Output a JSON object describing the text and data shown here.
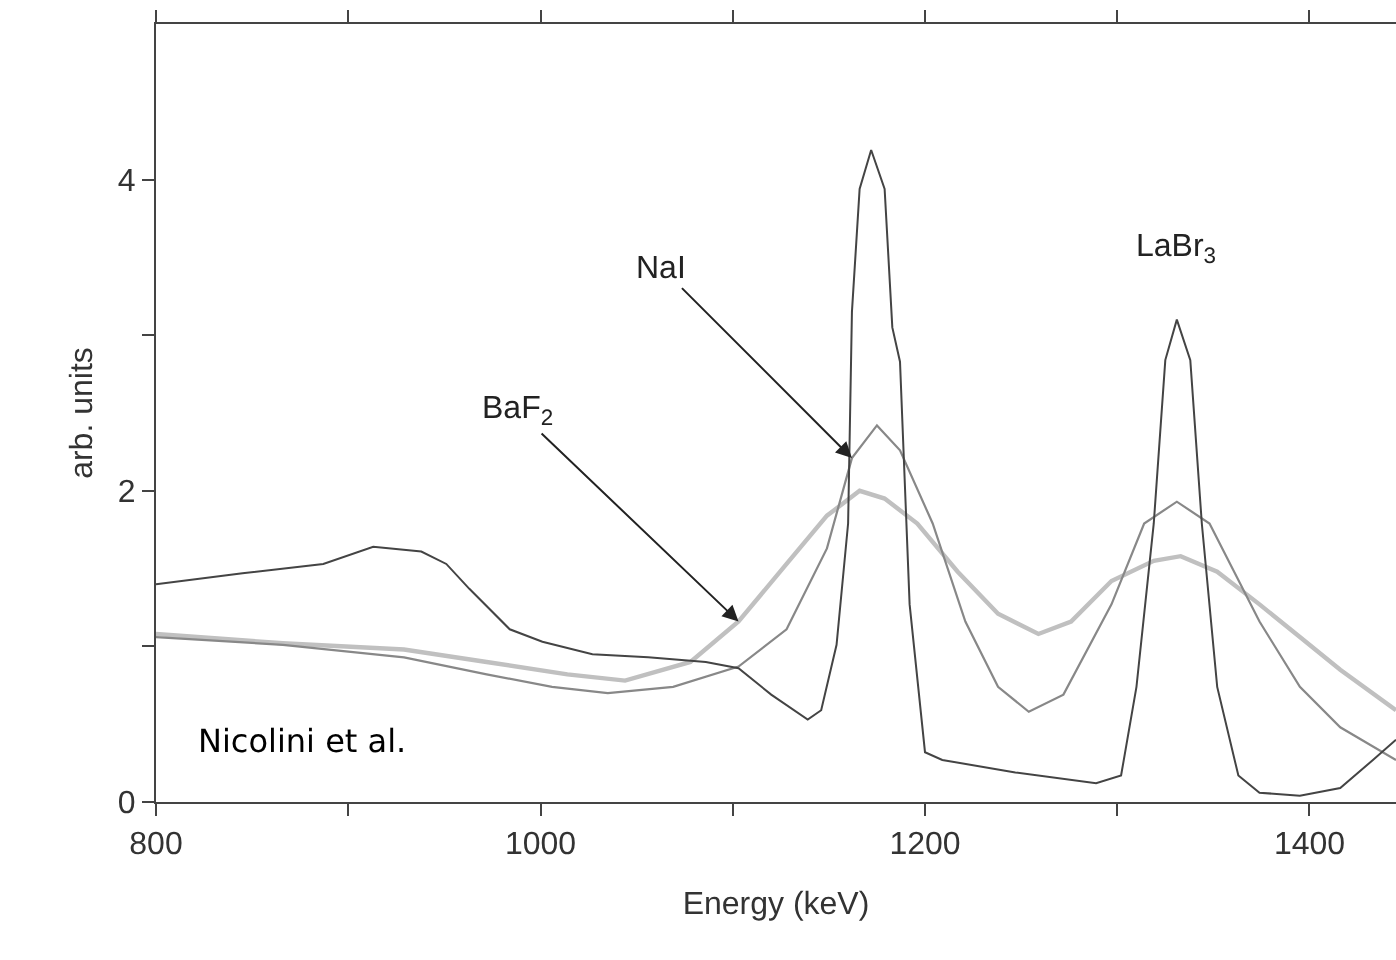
{
  "chart_data": {
    "type": "line",
    "xlabel": "Energy (keV)",
    "ylabel": "arb. units",
    "xlim": [
      800,
      1445
    ],
    "ylim": [
      0,
      5
    ],
    "xticks": [
      800,
      {
        "value": 900,
        "label": null
      },
      1000,
      {
        "value": 1100,
        "label": null
      },
      1200,
      {
        "value": 1300,
        "label": null
      },
      1400
    ],
    "yticks": [
      0,
      {
        "value": 1,
        "label": null
      },
      2,
      {
        "value": 3,
        "label": null
      },
      4
    ],
    "marker": "none",
    "line_style": "solid",
    "series": [
      {
        "color": "#c0c0c0",
        "x": [
          800,
          866,
          929,
          972,
          1014,
          1044,
          1078,
          1103,
          1128,
          1149,
          1166,
          1179,
          1196,
          1217,
          1238,
          1259,
          1276,
          1297,
          1319,
          1333,
          1352,
          1374,
          1395,
          1416,
          1445
        ],
        "values": [
          1.08,
          1.02,
          0.98,
          0.9,
          0.82,
          0.78,
          0.9,
          1.16,
          1.53,
          1.84,
          2.0,
          1.95,
          1.79,
          1.48,
          1.21,
          1.08,
          1.16,
          1.42,
          1.55,
          1.58,
          1.48,
          1.27,
          1.06,
          0.85,
          0.59
        ]
      },
      {
        "color": "#888888",
        "x": [
          800,
          866,
          929,
          972,
          1006,
          1035,
          1069,
          1103,
          1128,
          1149,
          1162,
          1175,
          1187,
          1204,
          1221,
          1238,
          1254,
          1272,
          1297,
          1314,
          1331,
          1348,
          1374,
          1395,
          1416,
          1445
        ],
        "values": [
          1.06,
          1.01,
          0.93,
          0.82,
          0.74,
          0.7,
          0.74,
          0.87,
          1.11,
          1.63,
          2.21,
          2.42,
          2.26,
          1.79,
          1.16,
          0.74,
          0.58,
          0.69,
          1.27,
          1.79,
          1.93,
          1.79,
          1.16,
          0.74,
          0.48,
          0.27
        ]
      },
      {
        "color": "#444444",
        "x": [
          800,
          845,
          887,
          913,
          938,
          951,
          963,
          984,
          1001,
          1027,
          1056,
          1086,
          1103,
          1120,
          1139,
          1146,
          1154,
          1160,
          1162,
          1166,
          1172,
          1179,
          1183,
          1187,
          1192,
          1200,
          1209,
          1247,
          1289,
          1302,
          1310,
          1319,
          1325,
          1331,
          1338,
          1344,
          1352,
          1363,
          1374,
          1395,
          1416,
          1433,
          1445
        ],
        "values": [
          1.4,
          1.47,
          1.53,
          1.64,
          1.61,
          1.53,
          1.37,
          1.11,
          1.03,
          0.95,
          0.93,
          0.9,
          0.86,
          0.69,
          0.53,
          0.59,
          1.01,
          1.79,
          3.15,
          3.94,
          4.19,
          3.94,
          3.05,
          2.83,
          1.27,
          0.32,
          0.27,
          0.19,
          0.12,
          0.17,
          0.74,
          1.79,
          2.84,
          3.1,
          2.84,
          1.79,
          0.74,
          0.17,
          0.06,
          0.04,
          0.09,
          0.27,
          0.4
        ]
      }
    ],
    "annotations": [
      {
        "text": "NaI",
        "x": 1162,
        "y": 2.21
      },
      {
        "text": "BaF$_{2}$",
        "x": 1103,
        "y": 1.16
      },
      {
        "text": "LaBr$_{3}$",
        "x": 1331,
        "y": 3.1
      },
      "Nicolini et al."
    ]
  }
}
